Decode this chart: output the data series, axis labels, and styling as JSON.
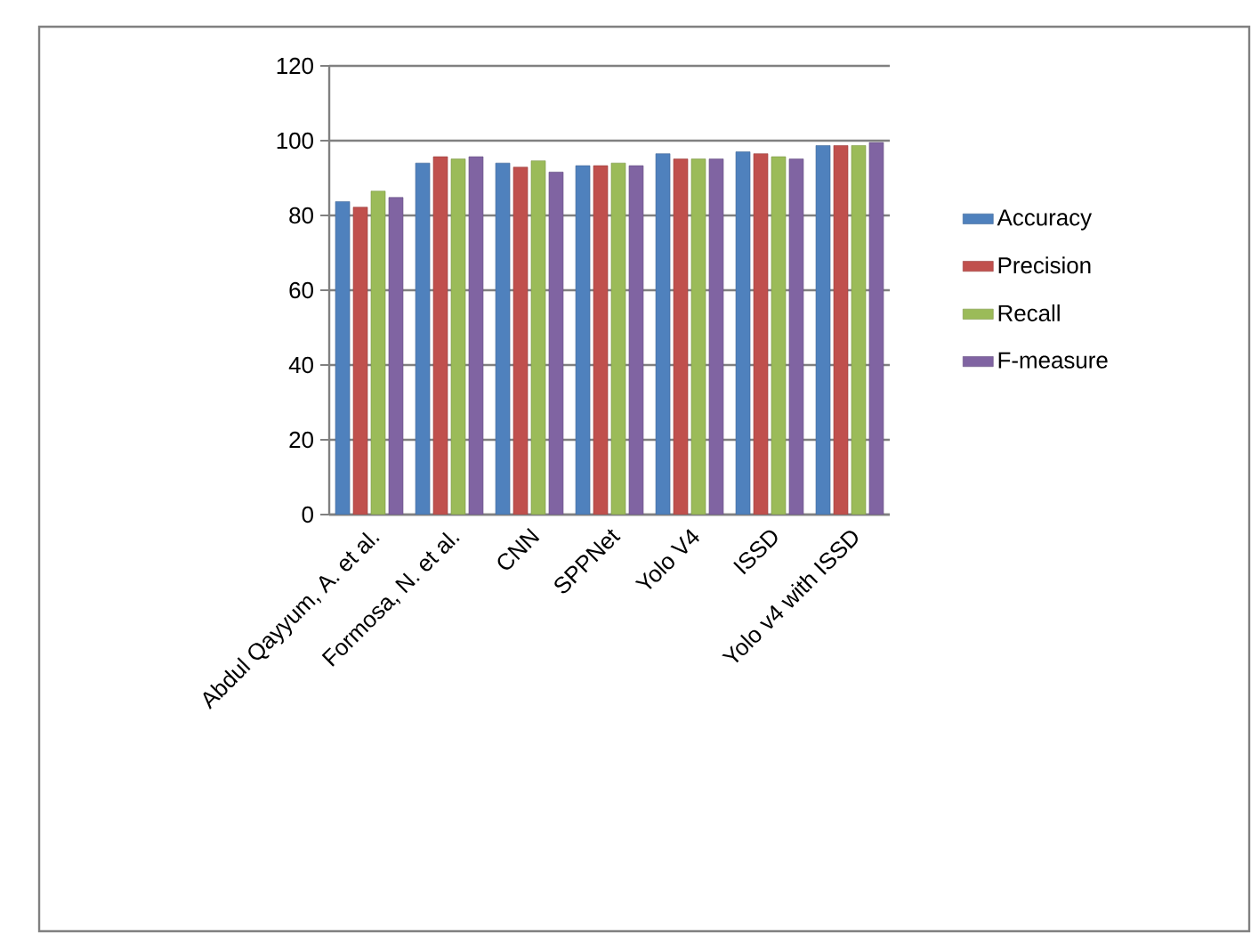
{
  "chart_data": {
    "type": "bar",
    "categories": [
      "Abdul Qayyum, A. et al.",
      "Formosa, N. et al.",
      "CNN",
      "SPPNet",
      "Yolo V4",
      "ISSD",
      "Yolo v4 with ISSD"
    ],
    "series": [
      {
        "name": "Accuracy",
        "color": "#4f81bd",
        "values": [
          83.7,
          94,
          94,
          93.3,
          96.5,
          97,
          98.7
        ]
      },
      {
        "name": "Precision",
        "color": "#c0504d",
        "values": [
          82.2,
          95.7,
          92.9,
          93.3,
          95.1,
          96.5,
          98.7
        ]
      },
      {
        "name": "Recall",
        "color": "#9bbb59",
        "values": [
          86.5,
          95.1,
          94.6,
          94,
          95.1,
          95.7,
          98.7
        ]
      },
      {
        "name": "F-measure",
        "color": "#8064a2",
        "values": [
          84.8,
          95.7,
          91.6,
          93.3,
          95.1,
          95.1,
          99.5
        ]
      }
    ],
    "ylim": [
      0,
      120
    ],
    "yticks": [
      0,
      20,
      40,
      60,
      80,
      100,
      120
    ],
    "grid": "y",
    "legend": "right"
  }
}
